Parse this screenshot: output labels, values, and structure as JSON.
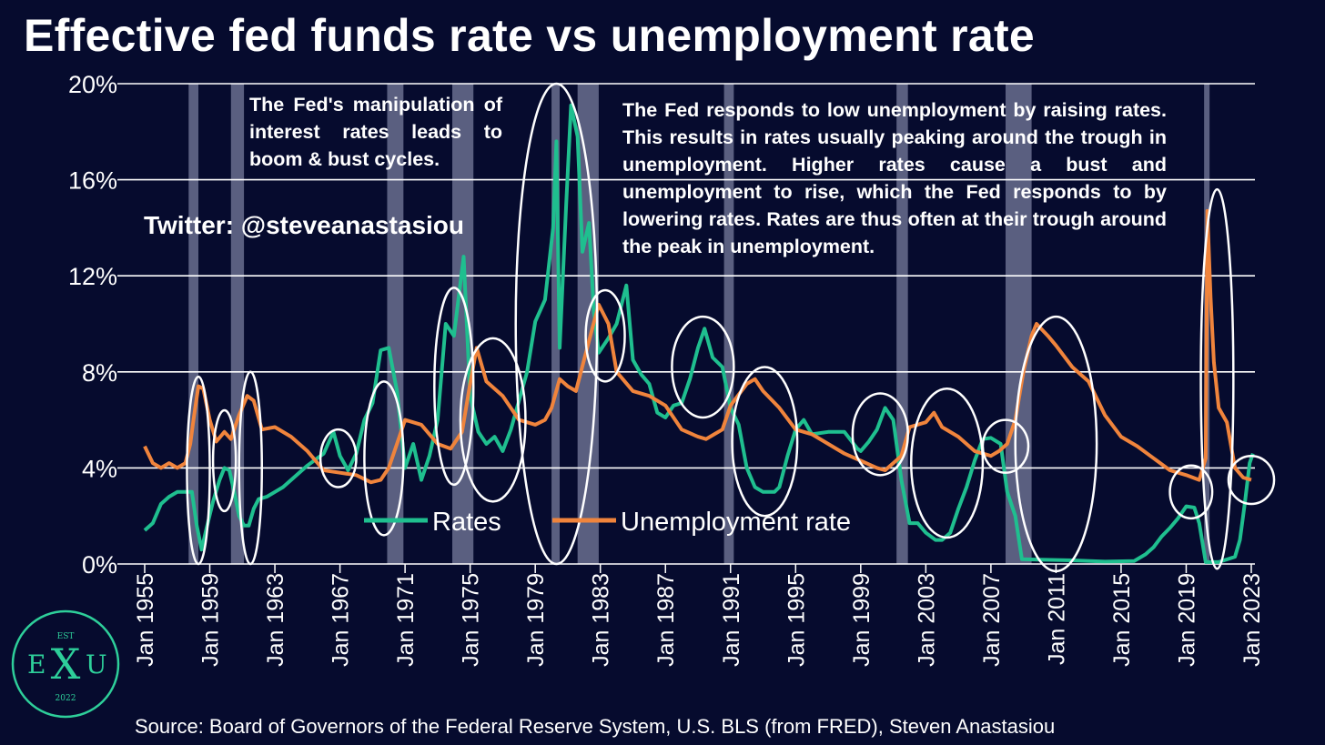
{
  "title": "Effective fed funds rate vs unemployment rate",
  "source": "Source: Board of Governors of the Federal Reserve System, U.S. BLS (from FRED), Steven Anastasiou",
  "annotations": {
    "left": "The Fed's manipulation of interest rates leads to boom & bust cycles.",
    "right": "The Fed responds to low unemployment by raising rates. This results in rates usually peaking around the trough in unemployment. Higher rates cause a bust and unemployment to rise, which the Fed responds to by lowering rates. Rates are thus often at their trough around the peak in unemployment.",
    "twitter": "Twitter: @steveanastasiou"
  },
  "logo": {
    "top": "EST",
    "left": "E",
    "mid": "X",
    "right": "U",
    "bottom": "2022"
  },
  "colors": {
    "background": "#060b2e",
    "rates": "#1fbf8f",
    "unemployment": "#f0843c",
    "recession": "#6a6e8e",
    "logo": "#2ecf9a"
  },
  "chart_data": {
    "type": "line",
    "x_unit": "year",
    "xlim": [
      1955,
      2023
    ],
    "ylim": [
      0,
      20
    ],
    "y_ticks": [
      0,
      4,
      8,
      12,
      16,
      20
    ],
    "y_tick_labels": [
      "0%",
      "4%",
      "8%",
      "12%",
      "16%",
      "20%"
    ],
    "x_ticks": [
      1955,
      1959,
      1963,
      1967,
      1971,
      1975,
      1979,
      1983,
      1987,
      1991,
      1995,
      1999,
      2003,
      2007,
      2011,
      2015,
      2019,
      2023
    ],
    "x_tick_labels": [
      "Jan 1955",
      "Jan 1959",
      "Jan 1963",
      "Jan 1967",
      "Jan 1971",
      "Jan 1975",
      "Jan 1979",
      "Jan 1983",
      "Jan 1987",
      "Jan 1991",
      "Jan 1995",
      "Jan 1999",
      "Jan 2003",
      "Jan 2007",
      "Jan 2011",
      "Jan 2015",
      "Jan 2019",
      "Jan 2023"
    ],
    "grid": "horizontal",
    "legend_placement": "bottom-center",
    "recessions": [
      [
        1957.7,
        1958.3
      ],
      [
        1960.3,
        1961.1
      ],
      [
        1969.9,
        1970.9
      ],
      [
        1973.9,
        1975.2
      ],
      [
        1980.0,
        1980.5
      ],
      [
        1981.6,
        1982.9
      ],
      [
        1990.6,
        1991.2
      ],
      [
        2001.2,
        2001.9
      ],
      [
        2007.9,
        2009.5
      ],
      [
        2020.1,
        2020.3
      ]
    ],
    "highlights": [
      {
        "cx": 1958.3,
        "cy": 3.9,
        "rx": 0.7,
        "ry": 3.9
      },
      {
        "cx": 1959.9,
        "cy": 4.3,
        "rx": 0.7,
        "ry": 2.1
      },
      {
        "cx": 1961.5,
        "cy": 4.0,
        "rx": 0.7,
        "ry": 4.0
      },
      {
        "cx": 1966.9,
        "cy": 4.4,
        "rx": 1.1,
        "ry": 1.2
      },
      {
        "cx": 1969.7,
        "cy": 4.4,
        "rx": 1.2,
        "ry": 3.2
      },
      {
        "cx": 1974.0,
        "cy": 7.4,
        "rx": 1.2,
        "ry": 4.1
      },
      {
        "cx": 1976.4,
        "cy": 6.0,
        "rx": 2.0,
        "ry": 3.4
      },
      {
        "cx": 1980.3,
        "cy": 10.0,
        "rx": 2.5,
        "ry": 10.0
      },
      {
        "cx": 1983.3,
        "cy": 9.5,
        "rx": 1.2,
        "ry": 1.9
      },
      {
        "cx": 1989.3,
        "cy": 8.2,
        "rx": 1.9,
        "ry": 2.1
      },
      {
        "cx": 1993.1,
        "cy": 5.1,
        "rx": 2.0,
        "ry": 3.1
      },
      {
        "cx": 2000.2,
        "cy": 5.4,
        "rx": 1.7,
        "ry": 1.7
      },
      {
        "cx": 2004.3,
        "cy": 4.2,
        "rx": 2.2,
        "ry": 3.1
      },
      {
        "cx": 2007.9,
        "cy": 4.9,
        "rx": 1.4,
        "ry": 1.1
      },
      {
        "cx": 2011.0,
        "cy": 5.0,
        "rx": 2.5,
        "ry": 5.3
      },
      {
        "cx": 2019.3,
        "cy": 3.0,
        "rx": 1.3,
        "ry": 1.1
      },
      {
        "cx": 2020.9,
        "cy": 7.7,
        "rx": 1.0,
        "ry": 7.9
      },
      {
        "cx": 2023.0,
        "cy": 3.5,
        "rx": 1.4,
        "ry": 1.0
      }
    ],
    "series": [
      {
        "name": "Rates",
        "color": "#1fbf8f",
        "points": [
          [
            1955.0,
            1.4
          ],
          [
            1955.5,
            1.7
          ],
          [
            1956.0,
            2.5
          ],
          [
            1956.5,
            2.8
          ],
          [
            1957.0,
            3.0
          ],
          [
            1957.6,
            3.0
          ],
          [
            1957.9,
            3.0
          ],
          [
            1958.2,
            1.6
          ],
          [
            1958.5,
            0.6
          ],
          [
            1958.8,
            1.5
          ],
          [
            1959.2,
            2.6
          ],
          [
            1959.6,
            3.5
          ],
          [
            1959.9,
            4.0
          ],
          [
            1960.2,
            3.9
          ],
          [
            1960.5,
            3.0
          ],
          [
            1960.8,
            2.0
          ],
          [
            1961.1,
            1.6
          ],
          [
            1961.4,
            1.6
          ],
          [
            1961.7,
            2.3
          ],
          [
            1962.0,
            2.7
          ],
          [
            1962.5,
            2.8
          ],
          [
            1963.0,
            3.0
          ],
          [
            1963.5,
            3.2
          ],
          [
            1964.0,
            3.5
          ],
          [
            1965.0,
            4.1
          ],
          [
            1966.0,
            4.6
          ],
          [
            1966.6,
            5.5
          ],
          [
            1967.0,
            4.5
          ],
          [
            1967.5,
            3.9
          ],
          [
            1968.0,
            4.6
          ],
          [
            1968.5,
            6.0
          ],
          [
            1969.0,
            6.7
          ],
          [
            1969.5,
            8.9
          ],
          [
            1970.0,
            9.0
          ],
          [
            1970.5,
            7.2
          ],
          [
            1971.0,
            4.0
          ],
          [
            1971.5,
            5.0
          ],
          [
            1972.0,
            3.5
          ],
          [
            1972.5,
            4.5
          ],
          [
            1973.0,
            6.0
          ],
          [
            1973.5,
            10.0
          ],
          [
            1974.0,
            9.5
          ],
          [
            1974.6,
            12.8
          ],
          [
            1975.0,
            7.0
          ],
          [
            1975.5,
            5.5
          ],
          [
            1976.0,
            5.0
          ],
          [
            1976.5,
            5.3
          ],
          [
            1977.0,
            4.7
          ],
          [
            1977.5,
            5.6
          ],
          [
            1978.0,
            6.8
          ],
          [
            1978.5,
            8.0
          ],
          [
            1979.0,
            10.1
          ],
          [
            1979.6,
            11.0
          ],
          [
            1980.1,
            14.0
          ],
          [
            1980.3,
            17.6
          ],
          [
            1980.5,
            9.0
          ],
          [
            1980.9,
            15.0
          ],
          [
            1981.2,
            19.1
          ],
          [
            1981.6,
            17.8
          ],
          [
            1981.9,
            13.0
          ],
          [
            1982.3,
            14.2
          ],
          [
            1982.6,
            10.5
          ],
          [
            1982.9,
            8.8
          ],
          [
            1983.5,
            9.4
          ],
          [
            1984.0,
            10.0
          ],
          [
            1984.6,
            11.6
          ],
          [
            1985.0,
            8.5
          ],
          [
            1985.5,
            7.9
          ],
          [
            1986.0,
            7.5
          ],
          [
            1986.5,
            6.3
          ],
          [
            1987.0,
            6.1
          ],
          [
            1987.5,
            6.6
          ],
          [
            1988.0,
            6.7
          ],
          [
            1988.5,
            7.7
          ],
          [
            1989.0,
            9.0
          ],
          [
            1989.4,
            9.8
          ],
          [
            1989.9,
            8.6
          ],
          [
            1990.5,
            8.2
          ],
          [
            1991.0,
            6.5
          ],
          [
            1991.5,
            5.8
          ],
          [
            1992.0,
            4.0
          ],
          [
            1992.5,
            3.2
          ],
          [
            1993.0,
            3.0
          ],
          [
            1993.7,
            3.0
          ],
          [
            1994.0,
            3.2
          ],
          [
            1994.5,
            4.5
          ],
          [
            1995.0,
            5.6
          ],
          [
            1995.5,
            6.0
          ],
          [
            1996.0,
            5.4
          ],
          [
            1997.0,
            5.5
          ],
          [
            1998.0,
            5.5
          ],
          [
            1998.8,
            4.8
          ],
          [
            1999.0,
            4.7
          ],
          [
            1999.5,
            5.1
          ],
          [
            2000.0,
            5.6
          ],
          [
            2000.5,
            6.5
          ],
          [
            2001.0,
            6.0
          ],
          [
            2001.5,
            3.5
          ],
          [
            2002.0,
            1.7
          ],
          [
            2002.5,
            1.7
          ],
          [
            2003.0,
            1.3
          ],
          [
            2003.6,
            1.0
          ],
          [
            2004.0,
            1.0
          ],
          [
            2004.5,
            1.3
          ],
          [
            2005.0,
            2.3
          ],
          [
            2005.5,
            3.2
          ],
          [
            2006.0,
            4.3
          ],
          [
            2006.5,
            5.2
          ],
          [
            2007.0,
            5.25
          ],
          [
            2007.6,
            5.0
          ],
          [
            2008.0,
            3.0
          ],
          [
            2008.5,
            2.0
          ],
          [
            2008.9,
            0.2
          ],
          [
            2010.0,
            0.18
          ],
          [
            2012.0,
            0.15
          ],
          [
            2014.0,
            0.1
          ],
          [
            2015.8,
            0.12
          ],
          [
            2016.5,
            0.4
          ],
          [
            2017.0,
            0.7
          ],
          [
            2017.5,
            1.15
          ],
          [
            2018.0,
            1.5
          ],
          [
            2018.5,
            1.9
          ],
          [
            2019.0,
            2.4
          ],
          [
            2019.5,
            2.35
          ],
          [
            2019.8,
            1.7
          ],
          [
            2020.2,
            0.08
          ],
          [
            2021.0,
            0.08
          ],
          [
            2022.0,
            0.3
          ],
          [
            2022.3,
            1.0
          ],
          [
            2022.6,
            2.5
          ],
          [
            2022.9,
            4.2
          ],
          [
            2023.1,
            4.6
          ]
        ]
      },
      {
        "name": "Unemployment rate",
        "color": "#f0843c",
        "points": [
          [
            1955.0,
            4.9
          ],
          [
            1955.5,
            4.2
          ],
          [
            1956.0,
            4.0
          ],
          [
            1956.5,
            4.2
          ],
          [
            1957.0,
            4.0
          ],
          [
            1957.5,
            4.2
          ],
          [
            1957.8,
            5.0
          ],
          [
            1958.0,
            6.0
          ],
          [
            1958.3,
            7.4
          ],
          [
            1958.6,
            7.3
          ],
          [
            1959.0,
            6.0
          ],
          [
            1959.4,
            5.1
          ],
          [
            1959.9,
            5.5
          ],
          [
            1960.3,
            5.2
          ],
          [
            1960.8,
            6.2
          ],
          [
            1961.3,
            7.0
          ],
          [
            1961.7,
            6.8
          ],
          [
            1962.2,
            5.6
          ],
          [
            1963.0,
            5.7
          ],
          [
            1964.0,
            5.3
          ],
          [
            1965.0,
            4.7
          ],
          [
            1966.0,
            3.9
          ],
          [
            1967.0,
            3.8
          ],
          [
            1968.0,
            3.7
          ],
          [
            1968.9,
            3.4
          ],
          [
            1969.5,
            3.5
          ],
          [
            1970.0,
            4.0
          ],
          [
            1970.5,
            5.0
          ],
          [
            1971.0,
            6.0
          ],
          [
            1972.0,
            5.8
          ],
          [
            1973.0,
            5.0
          ],
          [
            1973.8,
            4.8
          ],
          [
            1974.5,
            5.5
          ],
          [
            1975.0,
            7.5
          ],
          [
            1975.4,
            9.0
          ],
          [
            1976.0,
            7.6
          ],
          [
            1977.0,
            7.0
          ],
          [
            1978.0,
            6.0
          ],
          [
            1979.0,
            5.8
          ],
          [
            1979.6,
            6.0
          ],
          [
            1980.0,
            6.5
          ],
          [
            1980.5,
            7.7
          ],
          [
            1981.0,
            7.4
          ],
          [
            1981.5,
            7.2
          ],
          [
            1982.0,
            8.5
          ],
          [
            1982.5,
            9.8
          ],
          [
            1982.9,
            10.8
          ],
          [
            1983.5,
            10.0
          ],
          [
            1984.0,
            8.0
          ],
          [
            1985.0,
            7.2
          ],
          [
            1986.0,
            7.0
          ],
          [
            1987.0,
            6.6
          ],
          [
            1988.0,
            5.6
          ],
          [
            1989.0,
            5.3
          ],
          [
            1989.5,
            5.2
          ],
          [
            1990.0,
            5.4
          ],
          [
            1990.5,
            5.6
          ],
          [
            1991.0,
            6.6
          ],
          [
            1992.0,
            7.5
          ],
          [
            1992.5,
            7.7
          ],
          [
            1993.0,
            7.2
          ],
          [
            1994.0,
            6.5
          ],
          [
            1995.0,
            5.6
          ],
          [
            1996.0,
            5.4
          ],
          [
            1997.0,
            5.0
          ],
          [
            1998.0,
            4.6
          ],
          [
            1999.0,
            4.3
          ],
          [
            2000.0,
            4.0
          ],
          [
            2000.5,
            3.9
          ],
          [
            2001.0,
            4.2
          ],
          [
            2001.5,
            4.5
          ],
          [
            2002.0,
            5.7
          ],
          [
            2003.0,
            5.9
          ],
          [
            2003.5,
            6.3
          ],
          [
            2004.0,
            5.7
          ],
          [
            2005.0,
            5.3
          ],
          [
            2006.0,
            4.7
          ],
          [
            2007.0,
            4.5
          ],
          [
            2007.5,
            4.7
          ],
          [
            2008.0,
            5.0
          ],
          [
            2008.5,
            6.0
          ],
          [
            2009.0,
            8.0
          ],
          [
            2009.5,
            9.5
          ],
          [
            2009.8,
            10.0
          ],
          [
            2010.5,
            9.5
          ],
          [
            2011.0,
            9.1
          ],
          [
            2012.0,
            8.2
          ],
          [
            2013.0,
            7.6
          ],
          [
            2014.0,
            6.2
          ],
          [
            2015.0,
            5.3
          ],
          [
            2016.0,
            4.9
          ],
          [
            2017.0,
            4.4
          ],
          [
            2018.0,
            3.9
          ],
          [
            2019.0,
            3.7
          ],
          [
            2019.8,
            3.5
          ],
          [
            2020.2,
            4.4
          ],
          [
            2020.3,
            14.7
          ],
          [
            2020.5,
            11.1
          ],
          [
            2020.7,
            8.4
          ],
          [
            2021.0,
            6.5
          ],
          [
            2021.5,
            5.9
          ],
          [
            2022.0,
            4.0
          ],
          [
            2022.5,
            3.6
          ],
          [
            2023.0,
            3.5
          ]
        ]
      }
    ],
    "legend": [
      {
        "label": "Rates",
        "color": "#1fbf8f"
      },
      {
        "label": "Unemployment rate",
        "color": "#f0843c"
      }
    ]
  }
}
